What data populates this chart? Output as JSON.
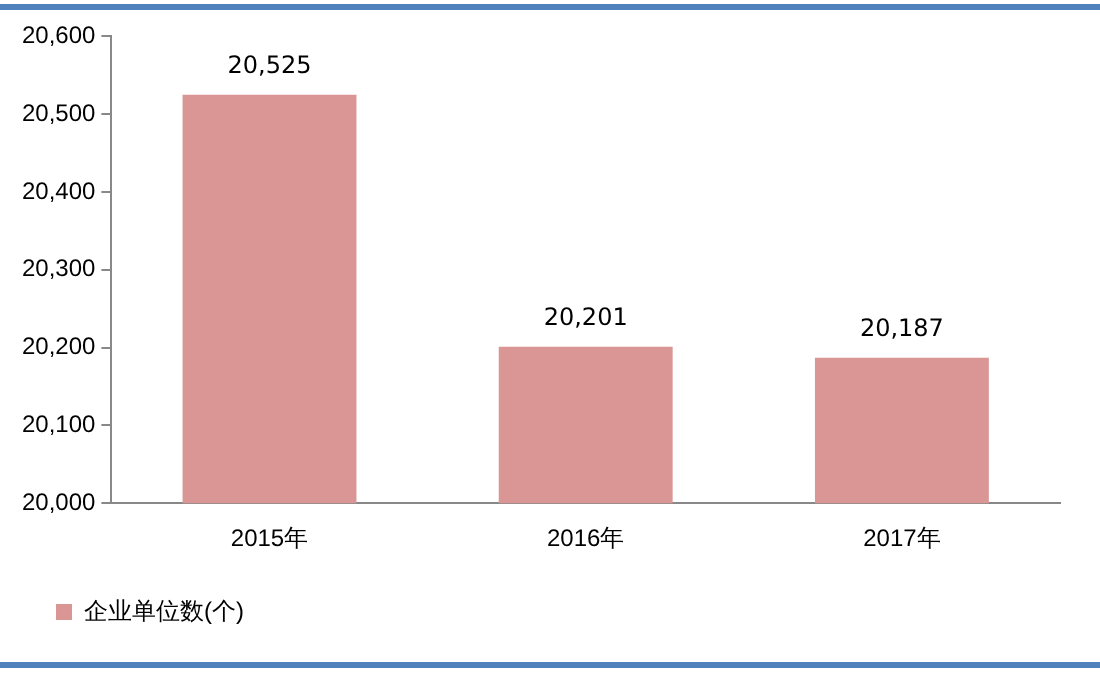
{
  "chart_data": {
    "type": "bar",
    "categories": [
      "2015年",
      "2016年",
      "2017年"
    ],
    "series": [
      {
        "name": "企业单位数(个)",
        "color": "#d99694",
        "values": [
          20525,
          20201,
          20187
        ]
      }
    ],
    "ylim": [
      20000,
      20600
    ],
    "yticks": [
      {
        "value": 20000,
        "label": "20,000"
      },
      {
        "value": 20100,
        "label": "20,100"
      },
      {
        "value": 20200,
        "label": "20,200"
      },
      {
        "value": 20300,
        "label": "20,300"
      },
      {
        "value": 20400,
        "label": "20,400"
      },
      {
        "value": 20500,
        "label": "20,500"
      },
      {
        "value": 20600,
        "label": "20,600"
      }
    ],
    "value_labels": [
      "20,525",
      "20,201",
      "20,187"
    ],
    "grid": false,
    "legend": "bottom left"
  }
}
